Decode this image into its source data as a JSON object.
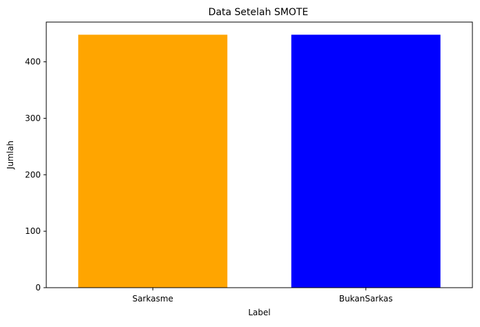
{
  "chart_data": {
    "type": "bar",
    "title": "Data Setelah SMOTE",
    "xlabel": "Label",
    "ylabel": "Jumlah",
    "categories": [
      "Sarkasme",
      "BukanSarkas"
    ],
    "values": [
      448,
      448
    ],
    "colors": [
      "#FFA500",
      "#0000FF"
    ],
    "ylim": [
      0,
      470.4
    ],
    "yticks": [
      0,
      100,
      200,
      300,
      400
    ],
    "grid": false,
    "legend": "none"
  }
}
